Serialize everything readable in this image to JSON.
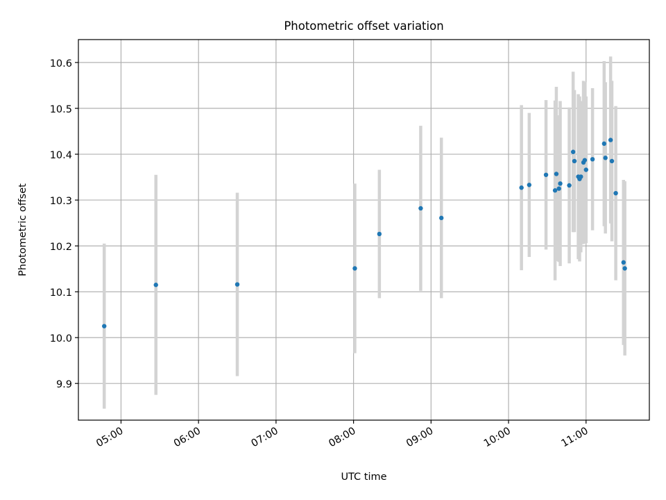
{
  "chart_data": {
    "type": "scatter",
    "title": "Photometric offset variation",
    "xlabel": "UTC time",
    "ylabel": "Photometric offset",
    "x_unit": "UTC time (HH:MM)",
    "xlim": [
      "04:27",
      "11:49"
    ],
    "ylim": [
      9.82,
      10.65
    ],
    "x_ticks": [
      "05:00",
      "06:00",
      "07:00",
      "08:00",
      "09:00",
      "10:00",
      "11:00"
    ],
    "y_ticks": [
      "9.9",
      "10.0",
      "10.1",
      "10.2",
      "10.3",
      "10.4",
      "10.5",
      "10.6"
    ],
    "grid": true,
    "marker_color": "#1f77b4",
    "errorbar_color": "#d3d3d3",
    "points": [
      {
        "x": "04:47",
        "y": 10.025,
        "err": 0.18
      },
      {
        "x": "05:27",
        "y": 10.115,
        "err": 0.24
      },
      {
        "x": "06:30",
        "y": 10.116,
        "err": 0.2
      },
      {
        "x": "08:01",
        "y": 10.151,
        "err": 0.185
      },
      {
        "x": "08:20",
        "y": 10.226,
        "err": 0.14
      },
      {
        "x": "08:52",
        "y": 10.282,
        "err": 0.18
      },
      {
        "x": "09:08",
        "y": 10.261,
        "err": 0.175
      },
      {
        "x": "10:10",
        "y": 10.327,
        "err": 0.18
      },
      {
        "x": "10:16",
        "y": 10.333,
        "err": 0.157
      },
      {
        "x": "10:29",
        "y": 10.355,
        "err": 0.163
      },
      {
        "x": "10:36",
        "y": 10.321,
        "err": 0.196
      },
      {
        "x": "10:37",
        "y": 10.357,
        "err": 0.19
      },
      {
        "x": "10:39",
        "y": 10.325,
        "err": 0.16
      },
      {
        "x": "10:40",
        "y": 10.336,
        "err": 0.18
      },
      {
        "x": "10:47",
        "y": 10.332,
        "err": 0.17
      },
      {
        "x": "10:50",
        "y": 10.405,
        "err": 0.175
      },
      {
        "x": "10:51",
        "y": 10.385,
        "err": 0.155
      },
      {
        "x": "10:54",
        "y": 10.351,
        "err": 0.18
      },
      {
        "x": "10:55",
        "y": 10.346,
        "err": 0.18
      },
      {
        "x": "10:56",
        "y": 10.351,
        "err": 0.165
      },
      {
        "x": "10:58",
        "y": 10.382,
        "err": 0.178
      },
      {
        "x": "10:59",
        "y": 10.387,
        "err": 0.17
      },
      {
        "x": "11:00",
        "y": 10.366,
        "err": 0.16
      },
      {
        "x": "11:05",
        "y": 10.389,
        "err": 0.155
      },
      {
        "x": "11:14",
        "y": 10.423,
        "err": 0.18
      },
      {
        "x": "11:15",
        "y": 10.392,
        "err": 0.165
      },
      {
        "x": "11:19",
        "y": 10.431,
        "err": 0.182
      },
      {
        "x": "11:20",
        "y": 10.385,
        "err": 0.175
      },
      {
        "x": "11:23",
        "y": 10.315,
        "err": 0.19
      },
      {
        "x": "11:29",
        "y": 10.164,
        "err": 0.18
      },
      {
        "x": "11:30",
        "y": 10.151,
        "err": 0.19
      }
    ]
  }
}
